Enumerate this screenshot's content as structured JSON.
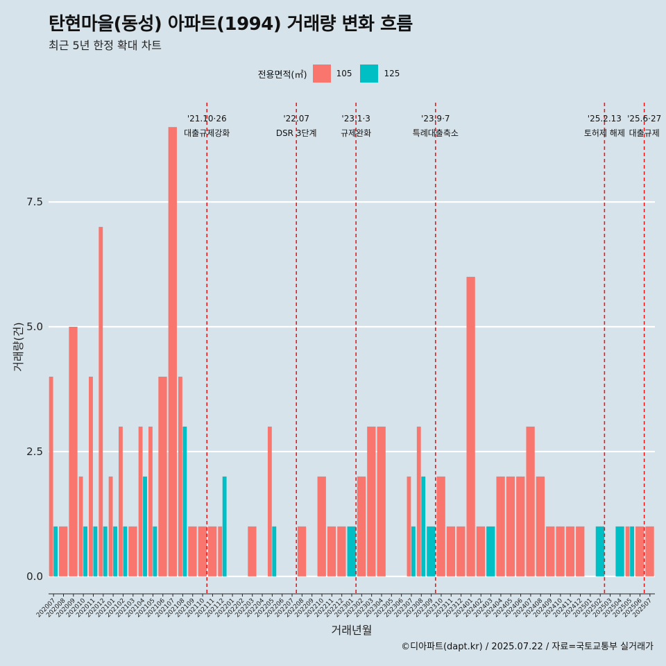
{
  "header": {
    "title": "탄현마을(동성) 아파트(1994) 거래량 변화 흐름",
    "subtitle": "최근 5년 한정 확대 차트"
  },
  "legend": {
    "title": "전용면적(㎡)",
    "items": [
      {
        "label": "105",
        "color": "#f8766d"
      },
      {
        "label": "125",
        "color": "#00bfc4"
      }
    ]
  },
  "caption": "©디아파트(dapt.kr) / 2025.07.22 / 자료=국토교통부 실거래가",
  "chart_data": {
    "type": "bar",
    "xlabel": "거래년월",
    "ylabel": "거래량(건)",
    "ylim": [
      -0.35,
      9.6
    ],
    "yticks": [
      0.0,
      2.5,
      5.0,
      7.5
    ],
    "ytick_labels": [
      "0.0",
      "2.5",
      "5.0",
      "7.5"
    ],
    "grid": true,
    "legend_position": "top",
    "categories": [
      "202007",
      "202008",
      "202009",
      "202010",
      "202011",
      "202012",
      "202101",
      "202102",
      "202103",
      "202104",
      "202105",
      "202106",
      "202107",
      "202108",
      "202109",
      "202110",
      "202111",
      "202112",
      "202201",
      "202202",
      "202203",
      "202204",
      "202205",
      "202206",
      "202207",
      "202208",
      "202209",
      "202210",
      "202211",
      "202212",
      "202301",
      "202302",
      "202303",
      "202304",
      "202305",
      "202306",
      "202307",
      "202308",
      "202309",
      "202310",
      "202311",
      "202312",
      "202401",
      "202402",
      "202403",
      "202404",
      "202405",
      "202406",
      "202407",
      "202408",
      "202409",
      "202410",
      "202411",
      "202412",
      "202501",
      "202502",
      "202503",
      "202504",
      "202505",
      "202506",
      "202507"
    ],
    "series": [
      {
        "name": "105",
        "color": "#f8766d",
        "values": [
          4,
          1,
          5,
          2,
          4,
          7,
          2,
          3,
          1,
          3,
          3,
          4,
          9,
          4,
          1,
          1,
          1,
          1,
          0,
          0,
          1,
          0,
          3,
          0,
          0,
          1,
          0,
          2,
          1,
          1,
          0,
          2,
          3,
          3,
          0,
          0,
          2,
          3,
          0,
          2,
          1,
          1,
          6,
          1,
          0,
          2,
          2,
          2,
          3,
          2,
          1,
          1,
          1,
          1,
          0,
          0,
          0,
          0,
          1,
          1,
          1
        ]
      },
      {
        "name": "125",
        "color": "#00bfc4",
        "values": [
          1,
          0,
          0,
          1,
          1,
          1,
          1,
          1,
          0,
          2,
          1,
          0,
          0,
          3,
          0,
          0,
          0,
          2,
          0,
          0,
          0,
          0,
          1,
          0,
          0,
          0,
          0,
          0,
          0,
          0,
          1,
          0,
          0,
          0,
          0,
          0,
          1,
          2,
          1,
          0,
          0,
          0,
          0,
          0,
          1,
          0,
          0,
          0,
          0,
          0,
          0,
          0,
          0,
          0,
          0,
          1,
          0,
          1,
          1,
          0,
          0
        ]
      }
    ],
    "events": [
      {
        "x": "202110",
        "date": "'21.10·26",
        "label": "대출규제강화"
      },
      {
        "x": "202207",
        "date": "'22.07",
        "label": "DSR 3단계"
      },
      {
        "x": "202301",
        "date": "'23.1·3",
        "label": "규제완화"
      },
      {
        "x": "202309",
        "date": "'23.9·7",
        "label": "특례대출축소"
      },
      {
        "x": "202502",
        "date": "'25.2.13",
        "label": "토허제 해제"
      },
      {
        "x": "202506",
        "date": "'25.6·27",
        "label": "대출규제"
      }
    ]
  }
}
